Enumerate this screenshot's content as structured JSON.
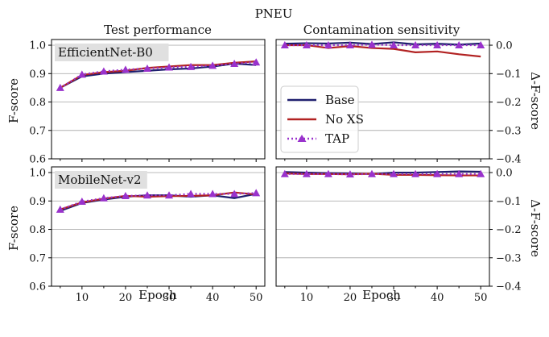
{
  "chart_data": {
    "type": "line",
    "suptitle": "PNEU",
    "column_titles": [
      "Test performance",
      "Contamination sensitivity"
    ],
    "row_labels": [
      "EfficientNet-B0",
      "MobileNet-v2"
    ],
    "xlabel": "Epoch",
    "ylabel_left": "F-score",
    "ylabel_right": "Δ-F-score",
    "x": [
      5,
      10,
      15,
      20,
      25,
      30,
      35,
      40,
      45,
      50
    ],
    "x_ticks": [
      10,
      20,
      30,
      40,
      50
    ],
    "xlim": [
      3,
      52
    ],
    "left_ylim": [
      0.6,
      1.02
    ],
    "left_yticks": [
      0.6,
      0.7,
      0.8,
      0.9,
      1.0
    ],
    "left_ytick_labels": [
      "0.6",
      "0.7",
      "0.8",
      "0.9",
      "1.0"
    ],
    "right_ylim": [
      -0.4,
      0.02
    ],
    "right_yticks": [
      0.0,
      -0.1,
      -0.2,
      -0.3,
      -0.4
    ],
    "right_ytick_labels": [
      "0.0",
      "−0.1",
      "−0.2",
      "−0.3",
      "−0.4"
    ],
    "grid": "horizontal",
    "legend": {
      "placement": "center-left of top-right panel",
      "entries": [
        {
          "label": "Base",
          "color": "#1f1f6e",
          "style": "solid"
        },
        {
          "label": "No XS",
          "color": "#b22222",
          "style": "solid"
        },
        {
          "label": "TAP",
          "color": "#9932cc",
          "style": "dotted-triangle"
        }
      ]
    },
    "panels": [
      {
        "row": 0,
        "col": 0,
        "axis": "left",
        "series": [
          {
            "name": "Base",
            "values": [
              0.85,
              0.89,
              0.9,
              0.905,
              0.91,
              0.915,
              0.918,
              0.925,
              0.935,
              0.93
            ]
          },
          {
            "name": "No XS",
            "values": [
              0.85,
              0.895,
              0.905,
              0.91,
              0.92,
              0.925,
              0.93,
              0.93,
              0.938,
              0.943
            ]
          },
          {
            "name": "TAP",
            "values": [
              0.85,
              0.897,
              0.908,
              0.914,
              0.918,
              0.922,
              0.924,
              0.928,
              0.935,
              0.94
            ]
          }
        ]
      },
      {
        "row": 0,
        "col": 1,
        "axis": "right",
        "series": [
          {
            "name": "Base",
            "values": [
              0.005,
              0.007,
              0.006,
              0.009,
              0.004,
              0.01,
              0.003,
              0.005,
              0.002,
              0.006
            ]
          },
          {
            "name": "No XS",
            "values": [
              0.0,
              0.0,
              -0.01,
              -0.003,
              -0.01,
              -0.013,
              -0.025,
              -0.022,
              -0.032,
              -0.04
            ]
          },
          {
            "name": "TAP",
            "values": [
              0.0,
              0.0,
              0.0,
              0.0,
              0.002,
              0.0,
              0.0,
              0.0,
              0.0,
              0.0
            ]
          }
        ]
      },
      {
        "row": 1,
        "col": 0,
        "axis": "left",
        "series": [
          {
            "name": "Base",
            "values": [
              0.865,
              0.893,
              0.905,
              0.915,
              0.92,
              0.92,
              0.915,
              0.92,
              0.91,
              0.925
            ]
          },
          {
            "name": "No XS",
            "values": [
              0.87,
              0.895,
              0.908,
              0.918,
              0.915,
              0.917,
              0.918,
              0.92,
              0.93,
              0.923
            ]
          },
          {
            "name": "TAP",
            "values": [
              0.87,
              0.898,
              0.91,
              0.918,
              0.92,
              0.92,
              0.925,
              0.925,
              0.925,
              0.928
            ]
          }
        ]
      },
      {
        "row": 1,
        "col": 1,
        "axis": "right",
        "series": [
          {
            "name": "Base",
            "values": [
              0.002,
              0.0,
              -0.002,
              -0.003,
              -0.005,
              0.0,
              0.0,
              0.002,
              0.004,
              0.003
            ]
          },
          {
            "name": "No XS",
            "values": [
              -0.003,
              -0.005,
              -0.005,
              -0.006,
              -0.004,
              -0.008,
              -0.008,
              -0.009,
              -0.01,
              -0.01
            ]
          },
          {
            "name": "TAP",
            "values": [
              -0.005,
              -0.005,
              -0.005,
              -0.006,
              -0.005,
              -0.005,
              -0.005,
              -0.005,
              -0.005,
              -0.005
            ]
          }
        ]
      }
    ]
  }
}
